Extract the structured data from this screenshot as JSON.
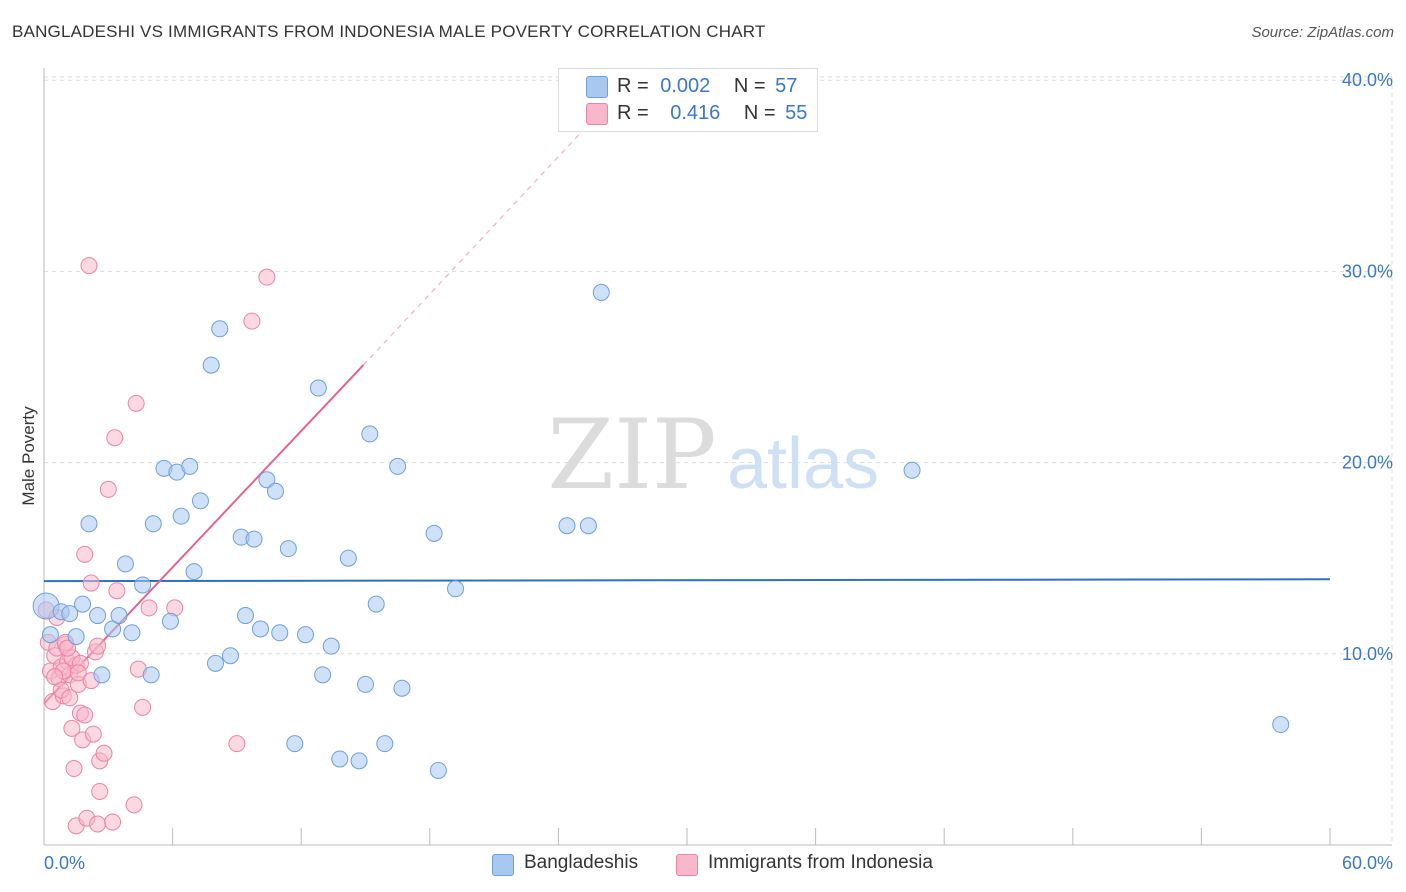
{
  "title": "BANGLADESHI VS IMMIGRANTS FROM INDONESIA MALE POVERTY CORRELATION CHART",
  "source": "Source: ZipAtlas.com",
  "watermark": {
    "zip": "ZIP",
    "atlas": "atlas"
  },
  "legend": {
    "r_label": "R =",
    "n_label": "N =",
    "series": [
      {
        "name": "Bangladeshis",
        "r": "0.002",
        "n": "57",
        "color": "#a8c8f0",
        "edge": "#6f9fdc"
      },
      {
        "name": "Immigrants from Indonesia",
        "r": "0.416",
        "n": "55",
        "color": "#f7b8cb",
        "edge": "#ec84a6"
      }
    ]
  },
  "chart_data": {
    "type": "scatter",
    "title": "BANGLADESHI VS IMMIGRANTS FROM INDONESIA MALE POVERTY CORRELATION CHART",
    "xlabel": "",
    "ylabel": "Male Poverty",
    "xlim": [
      0,
      60
    ],
    "ylim": [
      0,
      42
    ],
    "x_tick_labels": [
      "0.0%",
      "60.0%"
    ],
    "y_ticks": [
      10,
      20,
      30,
      40
    ],
    "y_tick_labels": [
      "10.0%",
      "20.0%",
      "30.0%",
      "40.0%"
    ],
    "grid": true,
    "series": [
      {
        "name": "Bangladeshis",
        "color": "#a8c8f0",
        "trend": {
          "x": [
            0,
            60
          ],
          "y": [
            13.8,
            13.9
          ],
          "color": "#2f6fc4"
        },
        "points": [
          [
            0.1,
            12.5
          ],
          [
            0.3,
            11.0
          ],
          [
            0.8,
            12.2
          ],
          [
            1.2,
            12.1
          ],
          [
            1.5,
            10.9
          ],
          [
            1.8,
            12.6
          ],
          [
            2.1,
            16.8
          ],
          [
            2.5,
            12.0
          ],
          [
            2.7,
            8.9
          ],
          [
            3.2,
            11.3
          ],
          [
            3.5,
            12.0
          ],
          [
            3.8,
            14.7
          ],
          [
            4.1,
            11.1
          ],
          [
            4.6,
            13.6
          ],
          [
            5.0,
            8.9
          ],
          [
            5.1,
            16.8
          ],
          [
            5.6,
            19.7
          ],
          [
            5.9,
            11.7
          ],
          [
            6.2,
            19.5
          ],
          [
            6.4,
            17.2
          ],
          [
            6.8,
            19.8
          ],
          [
            7.0,
            14.3
          ],
          [
            7.3,
            18.0
          ],
          [
            7.8,
            25.1
          ],
          [
            8.0,
            9.5
          ],
          [
            8.2,
            27.0
          ],
          [
            8.7,
            9.9
          ],
          [
            9.2,
            16.1
          ],
          [
            9.4,
            12.0
          ],
          [
            9.8,
            16.0
          ],
          [
            10.1,
            11.3
          ],
          [
            10.4,
            19.1
          ],
          [
            10.8,
            18.5
          ],
          [
            11.0,
            11.1
          ],
          [
            11.4,
            15.5
          ],
          [
            11.7,
            5.3
          ],
          [
            12.2,
            11.0
          ],
          [
            12.8,
            23.9
          ],
          [
            13.0,
            8.9
          ],
          [
            13.4,
            10.4
          ],
          [
            13.8,
            4.5
          ],
          [
            14.2,
            15.0
          ],
          [
            14.7,
            4.4
          ],
          [
            15.0,
            8.4
          ],
          [
            15.2,
            21.5
          ],
          [
            15.5,
            12.6
          ],
          [
            15.9,
            5.3
          ],
          [
            16.5,
            19.8
          ],
          [
            16.7,
            8.2
          ],
          [
            18.2,
            16.3
          ],
          [
            18.4,
            3.9
          ],
          [
            19.2,
            13.4
          ],
          [
            24.4,
            16.7
          ],
          [
            25.4,
            16.7
          ],
          [
            26.0,
            28.9
          ],
          [
            40.5,
            19.6
          ],
          [
            57.7,
            6.3
          ]
        ]
      },
      {
        "name": "Immigrants from Indonesia",
        "color": "#f7b8cb",
        "trend": {
          "x": [
            0,
            14.9
          ],
          "y": [
            7.4,
            25.1
          ],
          "dashed_x": [
            14.9,
            26
          ],
          "dashed_y": [
            25.1,
            38.4
          ],
          "color": "#e8628e"
        },
        "points": [
          [
            0.1,
            12.3
          ],
          [
            0.2,
            10.6
          ],
          [
            0.3,
            9.1
          ],
          [
            0.4,
            7.5
          ],
          [
            0.5,
            9.9
          ],
          [
            0.6,
            10.3
          ],
          [
            0.7,
            8.7
          ],
          [
            0.8,
            9.3
          ],
          [
            0.9,
            7.8
          ],
          [
            1.0,
            10.5
          ],
          [
            1.1,
            9.6
          ],
          [
            1.2,
            8.9
          ],
          [
            1.3,
            6.1
          ],
          [
            1.4,
            4.0
          ],
          [
            1.5,
            9.4
          ],
          [
            1.5,
            1.0
          ],
          [
            1.6,
            8.4
          ],
          [
            1.7,
            6.9
          ],
          [
            1.8,
            5.5
          ],
          [
            1.9,
            6.8
          ],
          [
            1.9,
            15.2
          ],
          [
            2.0,
            1.4
          ],
          [
            2.1,
            30.3
          ],
          [
            2.2,
            13.7
          ],
          [
            2.3,
            5.8
          ],
          [
            2.4,
            10.1
          ],
          [
            2.5,
            10.4
          ],
          [
            2.5,
            1.1
          ],
          [
            2.6,
            4.4
          ],
          [
            2.6,
            2.8
          ],
          [
            2.8,
            4.8
          ],
          [
            3.0,
            18.6
          ],
          [
            3.2,
            1.2
          ],
          [
            3.3,
            21.3
          ],
          [
            3.4,
            13.3
          ],
          [
            4.2,
            2.1
          ],
          [
            4.3,
            23.1
          ],
          [
            4.4,
            9.2
          ],
          [
            4.6,
            7.2
          ],
          [
            4.9,
            12.4
          ],
          [
            6.1,
            12.4
          ],
          [
            9.0,
            5.3
          ],
          [
            9.7,
            27.4
          ],
          [
            10.4,
            29.7
          ],
          [
            1.0,
            10.6
          ],
          [
            0.6,
            11.9
          ],
          [
            1.3,
            9.8
          ],
          [
            0.9,
            9.1
          ],
          [
            1.7,
            9.5
          ],
          [
            0.8,
            8.1
          ],
          [
            1.1,
            10.3
          ],
          [
            1.6,
            9.0
          ],
          [
            0.5,
            8.8
          ],
          [
            1.2,
            7.7
          ],
          [
            2.2,
            8.6
          ]
        ]
      }
    ]
  }
}
